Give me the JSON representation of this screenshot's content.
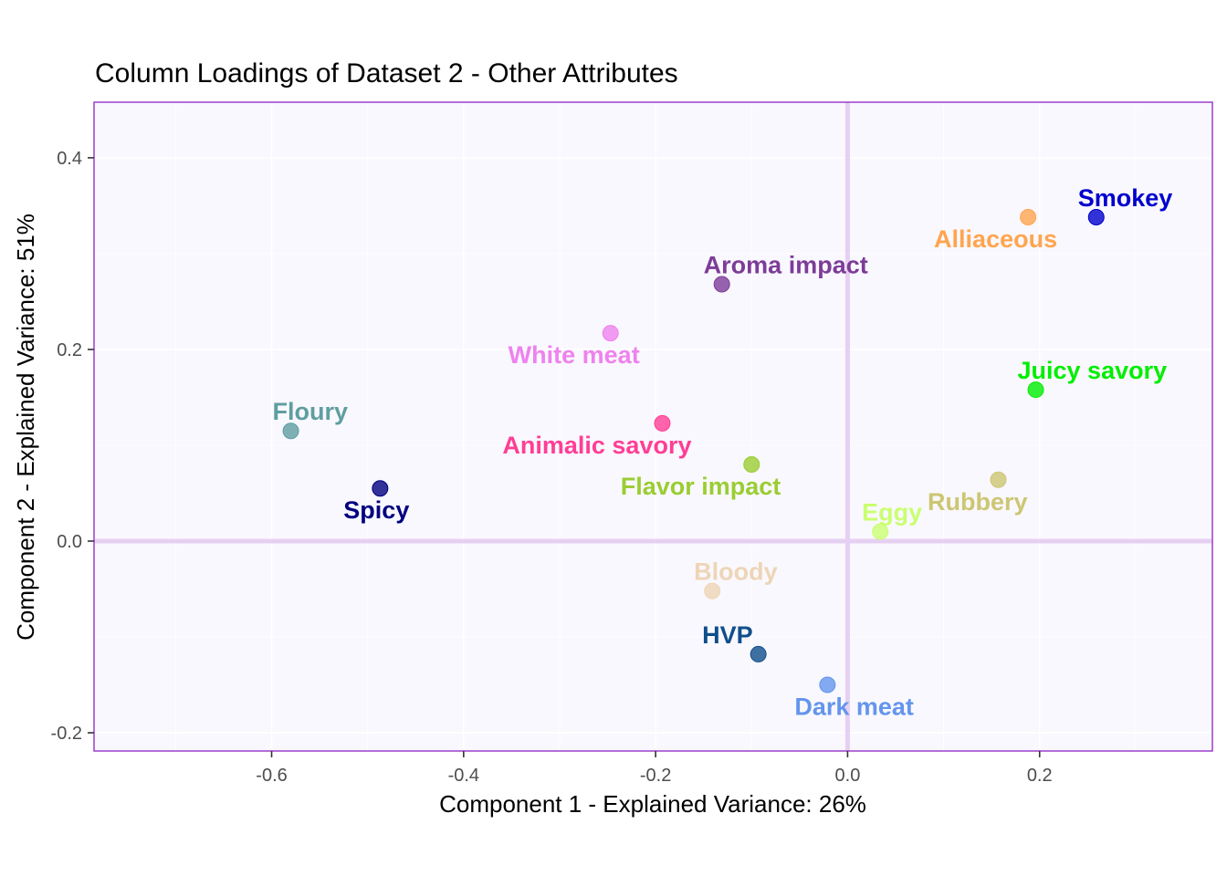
{
  "chart_data": {
    "type": "scatter",
    "title": "Column Loadings of Dataset 2 - Other Attributes",
    "xlabel": "Component 1 - Explained Variance: 26%",
    "ylabel": "Component 2 - Explained Variance: 51%",
    "xlim": [
      -0.785,
      0.38
    ],
    "ylim": [
      -0.219,
      0.458
    ],
    "xticks": [
      -0.6,
      -0.4,
      -0.2,
      0.0,
      0.2
    ],
    "xtick_labels": [
      "-0.6",
      "-0.4",
      "-0.2",
      "0.0",
      "0.2"
    ],
    "yticks": [
      -0.2,
      0.0,
      0.2,
      0.4
    ],
    "ytick_labels": [
      "-0.2",
      "0.0",
      "0.2",
      "0.4"
    ],
    "grid": true,
    "reference_lines": {
      "x": 0,
      "y": 0,
      "color": "#e6d0f2"
    },
    "panel_background": "#f9f8fe",
    "panel_border_color": "#9b3fcb",
    "points": [
      {
        "label": "Smokey",
        "x": 0.259,
        "y": 0.338,
        "color": "#0000cd",
        "label_pos": "above-right"
      },
      {
        "label": "Alliaceous",
        "x": 0.188,
        "y": 0.338,
        "color": "#ffa54f",
        "label_pos": "below-left"
      },
      {
        "label": "Aroma impact",
        "x": -0.131,
        "y": 0.268,
        "color": "#7d3c98",
        "label_pos": "above-right"
      },
      {
        "label": "White meat",
        "x": -0.247,
        "y": 0.217,
        "color": "#ee82ee",
        "label_pos": "below-left"
      },
      {
        "label": "Juicy savory",
        "x": 0.196,
        "y": 0.158,
        "color": "#00ee00",
        "label_pos": "above-right"
      },
      {
        "label": "Floury",
        "x": -0.58,
        "y": 0.115,
        "color": "#5f9ea0",
        "label_pos": "above-right"
      },
      {
        "label": "Animalic savory",
        "x": -0.193,
        "y": 0.123,
        "color": "#ff3e96",
        "label_pos": "below-left"
      },
      {
        "label": "Flavor impact",
        "x": -0.1,
        "y": 0.08,
        "color": "#9acd32",
        "label_pos": "below-left"
      },
      {
        "label": "Spicy",
        "x": -0.487,
        "y": 0.055,
        "color": "#000080",
        "label_pos": "below-left"
      },
      {
        "label": "Rubbery",
        "x": 0.157,
        "y": 0.064,
        "color": "#cdc673",
        "label_pos": "below-left"
      },
      {
        "label": "Eggy",
        "x": 0.034,
        "y": 0.01,
        "color": "#caff70",
        "label_pos": "above-right"
      },
      {
        "label": "Bloody",
        "x": -0.141,
        "y": -0.052,
        "color": "#eed5b7",
        "label_pos": "above-right"
      },
      {
        "label": "HVP",
        "x": -0.093,
        "y": -0.118,
        "color": "#104e8b",
        "label_pos": "above-left"
      },
      {
        "label": "Dark meat",
        "x": -0.021,
        "y": -0.15,
        "color": "#6495ed",
        "label_pos": "below-right"
      }
    ]
  }
}
